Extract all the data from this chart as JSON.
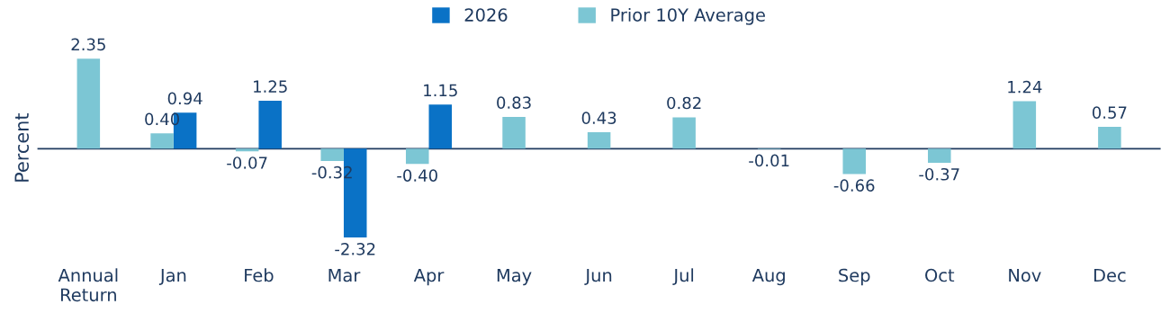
{
  "chart_data": {
    "type": "bar",
    "ylabel": "Percent",
    "categories": [
      "Annual\nReturn",
      "Jan",
      "Feb",
      "Mar",
      "Apr",
      "May",
      "Jun",
      "Jul",
      "Aug",
      "Sep",
      "Oct",
      "Nov",
      "Dec"
    ],
    "series": [
      {
        "name": "2026",
        "color": "#0a72c6",
        "values": [
          null,
          0.94,
          1.25,
          -2.32,
          1.15,
          null,
          null,
          null,
          null,
          null,
          null,
          null,
          null
        ],
        "value_labels": [
          null,
          "0.94",
          "1.25",
          "-2.32",
          "1.15",
          null,
          null,
          null,
          null,
          null,
          null,
          null,
          null
        ]
      },
      {
        "name": "Prior 10Y Average",
        "color": "#7cc6d4",
        "values": [
          2.35,
          0.4,
          -0.07,
          -0.32,
          -0.4,
          0.83,
          0.43,
          0.82,
          -0.01,
          -0.66,
          -0.37,
          1.24,
          0.57
        ],
        "value_labels": [
          "2.35",
          "0.40",
          "-0.07",
          "-0.32",
          "-0.40",
          "0.83",
          "0.43",
          "0.82",
          "-0.01",
          "-0.66",
          "-0.37",
          "1.24",
          "0.57"
        ]
      }
    ],
    "tick_labels": "x",
    "grid": false,
    "legend": "top",
    "ref_lines": [
      {
        "axis": "y",
        "value": 0,
        "color": "#1f3a5f"
      }
    ]
  }
}
